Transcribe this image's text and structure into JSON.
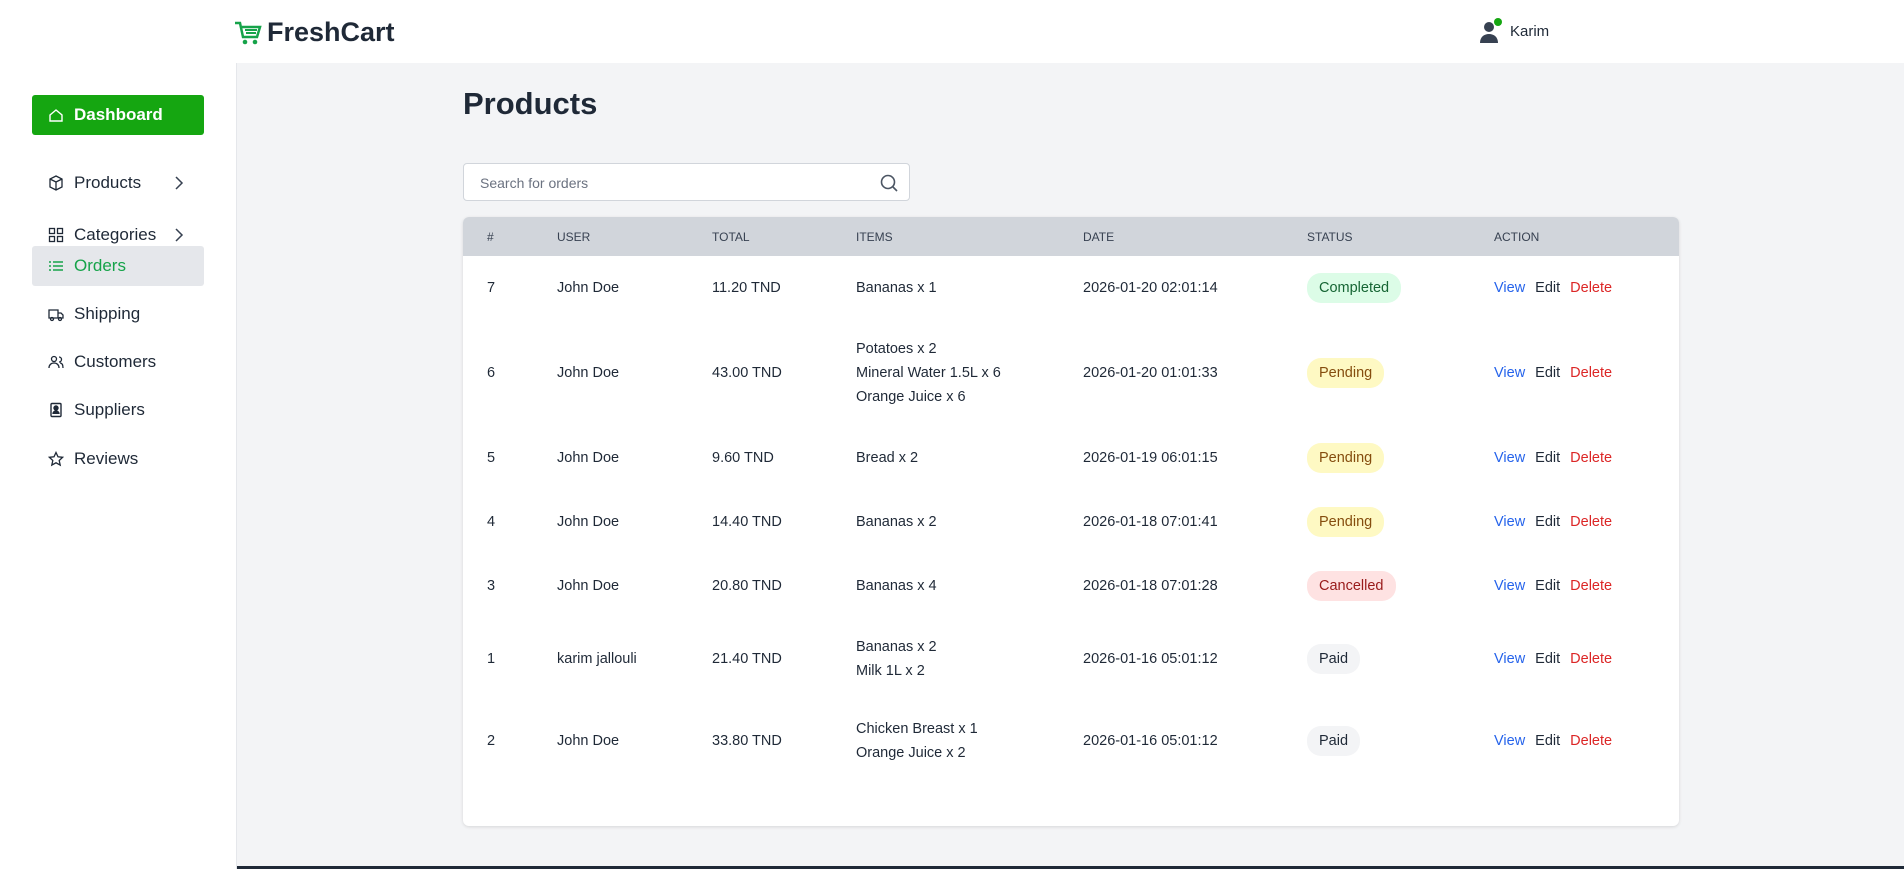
{
  "header": {
    "brand": "FreshCart",
    "user": "Karim"
  },
  "sidebar": {
    "items": [
      "Dashboard",
      "Products",
      "Categories",
      "Orders",
      "Shipping",
      "Customers",
      "Suppliers",
      "Reviews"
    ],
    "active": "Dashboard",
    "selected": "Orders",
    "expandable": [
      "Products",
      "Categories"
    ]
  },
  "page": {
    "title": "Products",
    "search_placeholder": "Search for orders"
  },
  "table": {
    "columns": [
      "#",
      "USER",
      "TOTAL",
      "ITEMS",
      "DATE",
      "STATUS",
      "ACTION"
    ],
    "actions": [
      "View",
      "Edit",
      "Delete"
    ],
    "status_styles": {
      "Completed": [
        "#dcfce7",
        "#166534"
      ],
      "Pending": [
        "#fef9c3",
        "#854d0e"
      ],
      "Cancelled": [
        "#fee2e2",
        "#991b1b"
      ],
      "Paid": [
        "#f3f4f6",
        "#1f2937"
      ]
    },
    "rows": [
      {
        "id": "7",
        "user": "John Doe",
        "total": "11.20 TND",
        "items": [
          "Bananas x 1"
        ],
        "date": "2026-01-20 02:01:14",
        "status": "Completed"
      },
      {
        "id": "6",
        "user": "John Doe",
        "total": "43.00 TND",
        "items": [
          "Potatoes x 2",
          "Mineral Water 1.5L x 6",
          "Orange Juice x 6"
        ],
        "date": "2026-01-20 01:01:33",
        "status": "Pending"
      },
      {
        "id": "5",
        "user": "John Doe",
        "total": "9.60 TND",
        "items": [
          "Bread x 2"
        ],
        "date": "2026-01-19 06:01:15",
        "status": "Pending"
      },
      {
        "id": "4",
        "user": "John Doe",
        "total": "14.40 TND",
        "items": [
          "Bananas x 2"
        ],
        "date": "2026-01-18 07:01:41",
        "status": "Pending"
      },
      {
        "id": "3",
        "user": "John Doe",
        "total": "20.80 TND",
        "items": [
          "Bananas x 4"
        ],
        "date": "2026-01-18 07:01:28",
        "status": "Cancelled"
      },
      {
        "id": "1",
        "user": "karim jallouli",
        "total": "21.40 TND",
        "items": [
          "Bananas x 2",
          "Milk 1L x 2"
        ],
        "date": "2026-01-16 05:01:12",
        "status": "Paid"
      },
      {
        "id": "2",
        "user": "John Doe",
        "total": "33.80 TND",
        "items": [
          "Chicken Breast x 1",
          "Orange Juice x 2"
        ],
        "date": "2026-01-16 05:01:12",
        "status": "Paid"
      }
    ]
  }
}
